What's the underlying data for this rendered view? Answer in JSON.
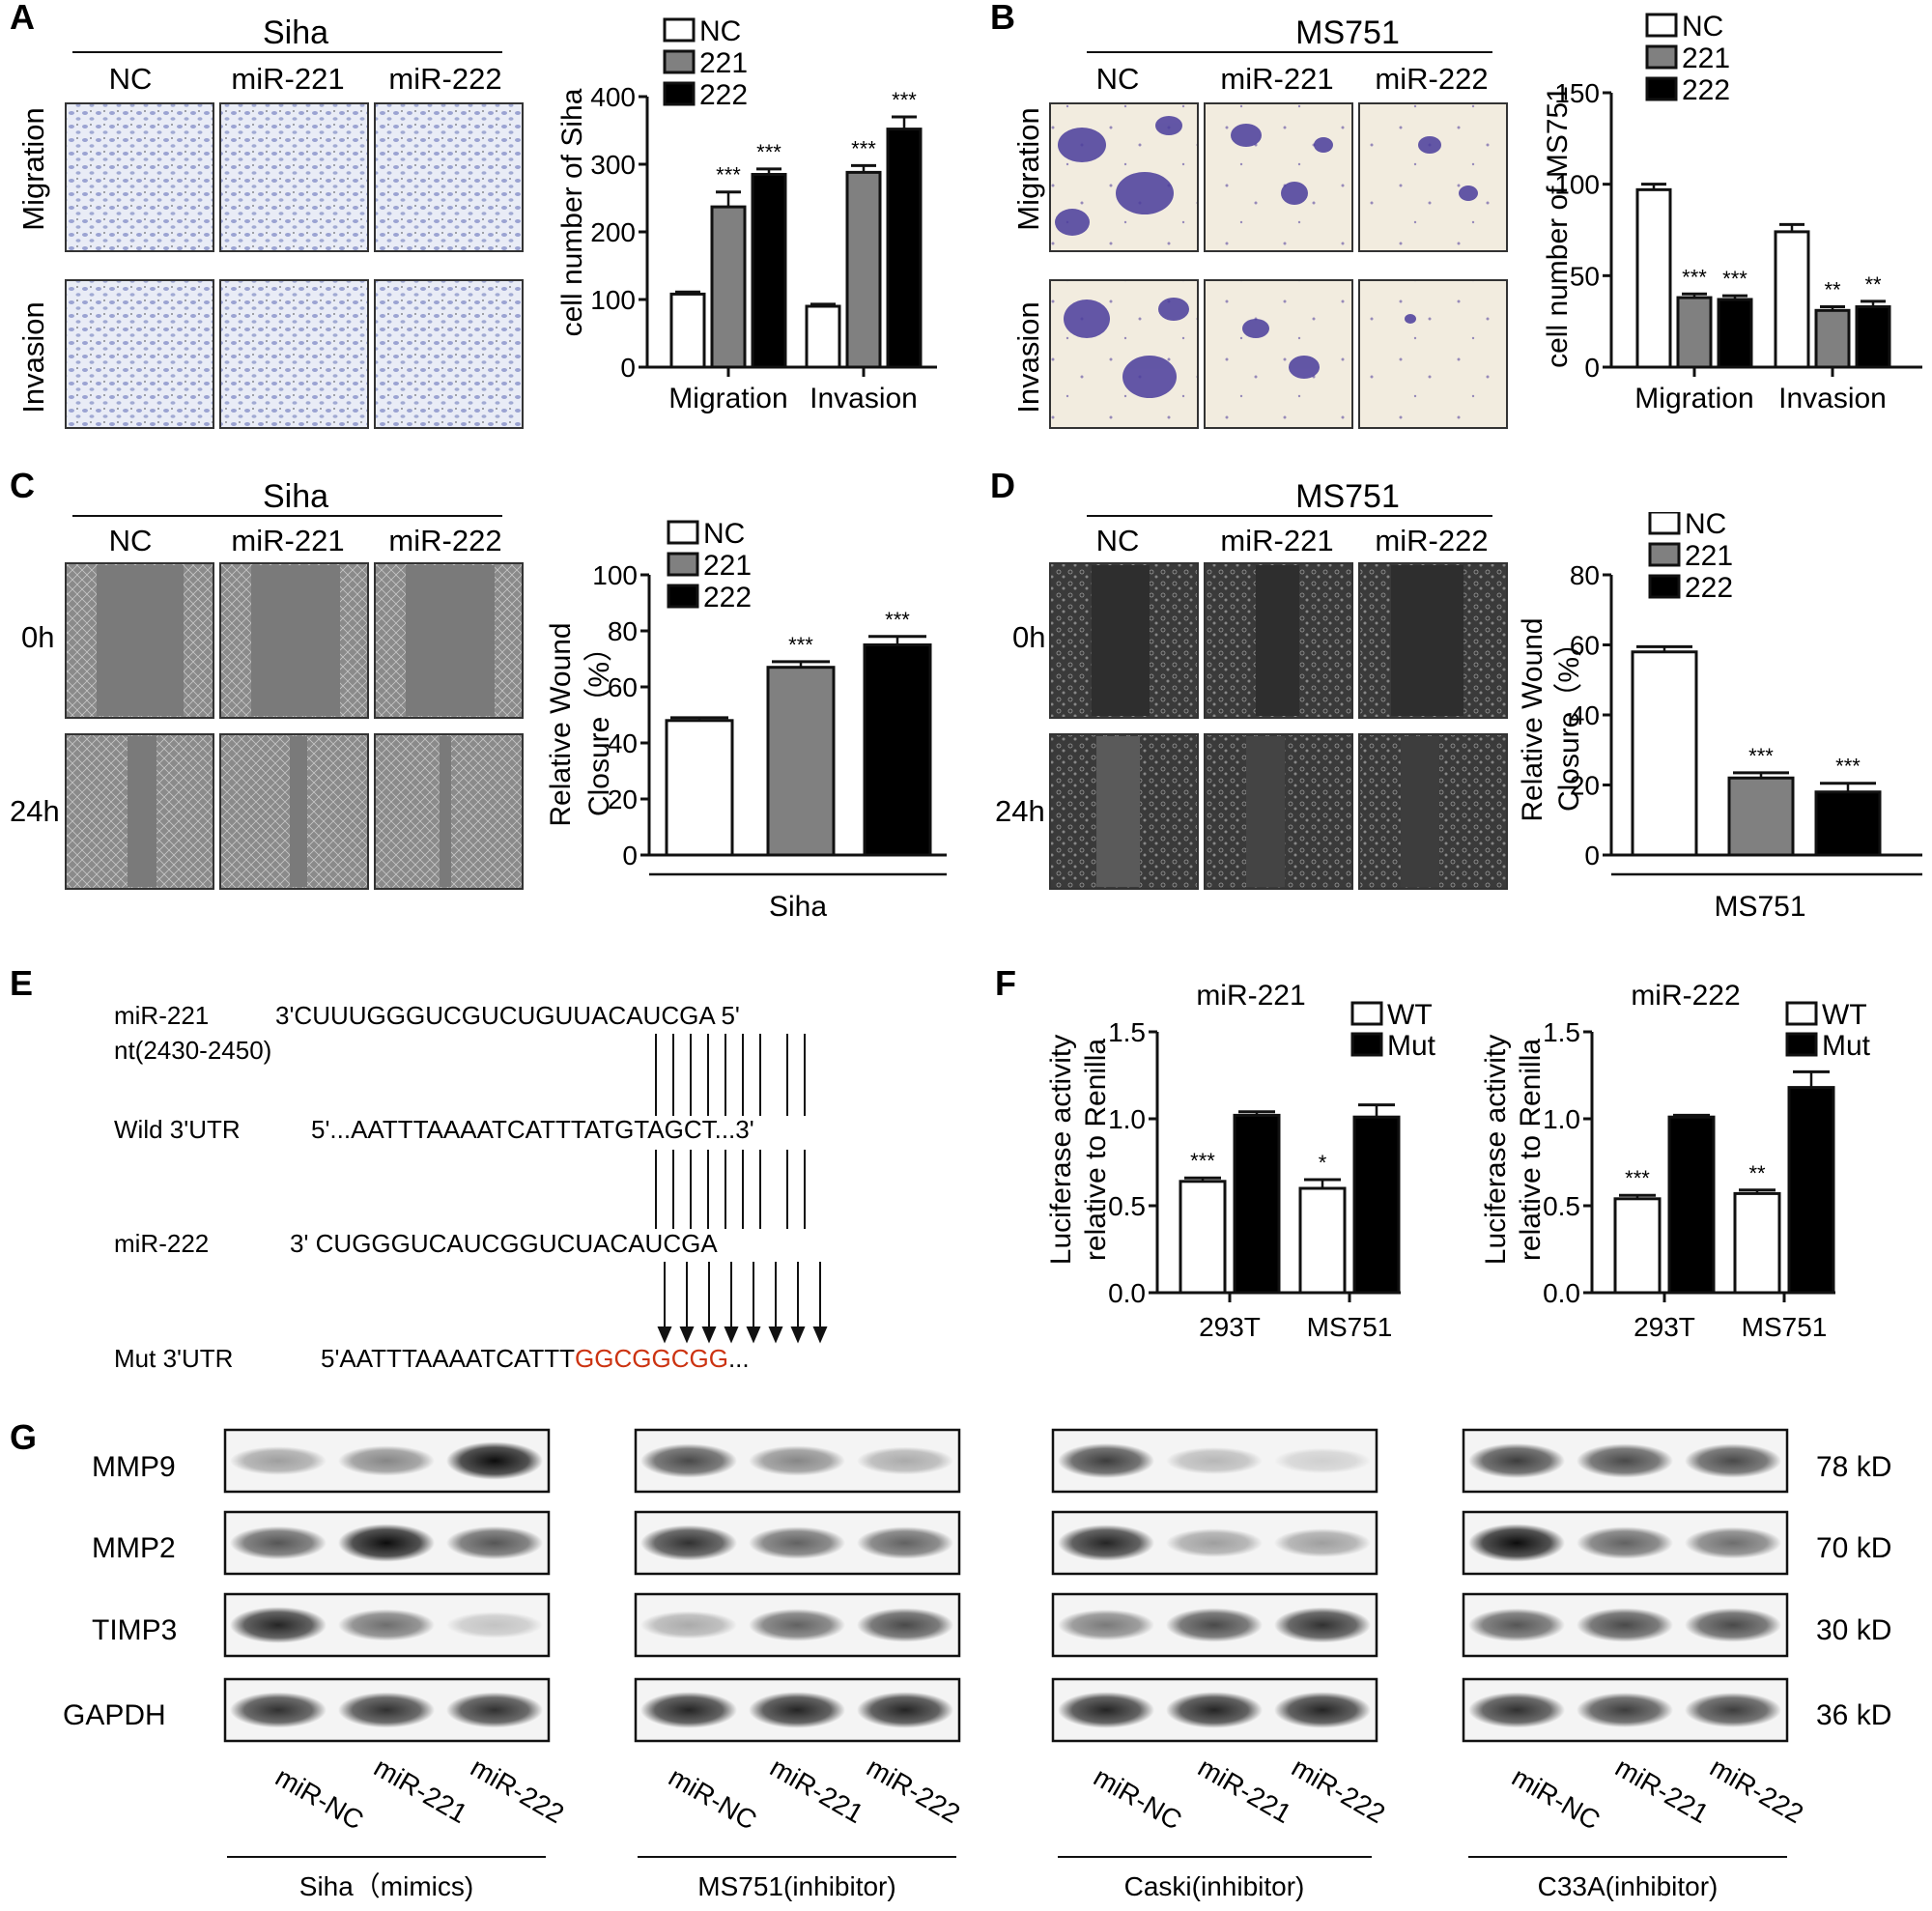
{
  "panels": {
    "A": {
      "letter": "A",
      "cell": "Siha",
      "cols": [
        "NC",
        "miR-221",
        "miR-222"
      ],
      "rows": [
        "Migration",
        "Invasion"
      ],
      "scale": "40μm",
      "chart": {
        "ylabel": "cell number of Siha",
        "legend": [
          "NC",
          "221",
          "222"
        ]
      }
    },
    "B": {
      "letter": "B",
      "cell": "MS751",
      "cols": [
        "NC",
        "miR-221",
        "miR-222"
      ],
      "rows": [
        "Migration",
        "Invasion"
      ],
      "scale": "40μm",
      "chart": {
        "ylabel": "cell number of MS751",
        "legend": [
          "NC",
          "221",
          "222"
        ]
      }
    },
    "C": {
      "letter": "C",
      "cell": "Siha",
      "cols": [
        "NC",
        "miR-221",
        "miR-222"
      ],
      "rows": [
        "0h",
        "24h"
      ],
      "scale": "100μm",
      "chart": {
        "ylabel1": "Relative Wound",
        "ylabel2": "Closure（%）",
        "xlabel": "Siha",
        "legend": [
          "NC",
          "221",
          "222"
        ]
      }
    },
    "D": {
      "letter": "D",
      "cell": "MS751",
      "cols": [
        "NC",
        "miR-221",
        "miR-222"
      ],
      "rows": [
        "0h",
        "24h"
      ],
      "scale": "100μm",
      "chart": {
        "ylabel1": "Relative Wound",
        "ylabel2": "Closure（%）",
        "xlabel": "MS751",
        "legend": [
          "NC",
          "221",
          "222"
        ]
      }
    },
    "E": {
      "letter": "E",
      "lines": [
        {
          "label": "miR-221",
          "seq": "3'CUUUGGGUCGUCUGUUACAUCGA 5'"
        },
        {
          "label": "nt(2430-2450)",
          "seq": ""
        },
        {
          "label": "Wild 3'UTR",
          "seq": "5'...AATTTAAAATCATTTATGTAGCT...3'"
        },
        {
          "label": "miR-222",
          "seq": "3' CUGGGUCAUCGGUCUACAUCGA"
        },
        {
          "label": "Mut 3'UTR",
          "seq": "5'AATTTAAAATCATTT",
          "seq_mut": "GGCGGCGG",
          "seq_tail": "..."
        }
      ]
    },
    "F": {
      "letter": "F",
      "ylabel1": "Luciferase activity",
      "ylabel2": "relative to Renilla",
      "legend": [
        "WT",
        "Mut"
      ],
      "titles": [
        "miR-221",
        "miR-222"
      ]
    },
    "G": {
      "letter": "G",
      "proteins": [
        "MMP9",
        "MMP2",
        "TIMP3",
        "GAPDH"
      ],
      "kd": [
        "78 kD",
        "70 kD",
        "30 kD",
        "36 kD"
      ],
      "lanes": [
        "miR-NC",
        "miR-221",
        "miR-222"
      ],
      "groups": [
        "Siha（mimics)",
        "MS751(inhibitor)",
        "Caski(inhibitor)",
        "C33A(inhibitor)"
      ]
    }
  },
  "chart_data": [
    {
      "id": "A",
      "type": "bar",
      "title": "",
      "categories": [
        "Migration",
        "Invasion"
      ],
      "series": [
        {
          "name": "NC",
          "values": [
            108,
            90
          ],
          "err": [
            3,
            3
          ]
        },
        {
          "name": "221",
          "values": [
            237,
            288
          ],
          "err": [
            22,
            10
          ]
        },
        {
          "name": "222",
          "values": [
            285,
            352
          ],
          "err": [
            8,
            18
          ]
        }
      ],
      "sig": [
        [
          "",
          "***",
          "***"
        ],
        [
          "",
          "***",
          "***"
        ]
      ],
      "ylim": [
        0,
        400
      ],
      "yticks": [
        0,
        100,
        200,
        300,
        400
      ]
    },
    {
      "id": "B",
      "type": "bar",
      "title": "",
      "categories": [
        "Migration",
        "Invasion"
      ],
      "series": [
        {
          "name": "NC",
          "values": [
            97,
            74
          ],
          "err": [
            3,
            4
          ]
        },
        {
          "name": "221",
          "values": [
            38,
            31
          ],
          "err": [
            2,
            2
          ]
        },
        {
          "name": "222",
          "values": [
            37,
            33
          ],
          "err": [
            2,
            3
          ]
        }
      ],
      "sig": [
        [
          "",
          "***",
          "***"
        ],
        [
          "",
          "**",
          "**"
        ]
      ],
      "ylim": [
        0,
        150
      ],
      "yticks": [
        0,
        50,
        100,
        150
      ]
    },
    {
      "id": "C",
      "type": "bar",
      "title": "",
      "categories": [
        "NC",
        "221",
        "222"
      ],
      "values": [
        48,
        67,
        75
      ],
      "err": [
        1,
        2,
        3
      ],
      "sig": [
        "",
        "***",
        "***"
      ],
      "ylim": [
        0,
        100
      ],
      "yticks": [
        0,
        20,
        40,
        60,
        80,
        100
      ]
    },
    {
      "id": "D",
      "type": "bar",
      "title": "",
      "categories": [
        "NC",
        "221",
        "222"
      ],
      "values": [
        58,
        22,
        18
      ],
      "err": [
        1.5,
        1.5,
        2.5
      ],
      "sig": [
        "",
        "***",
        "***"
      ],
      "ylim": [
        0,
        80
      ],
      "yticks": [
        0,
        20,
        40,
        60,
        80
      ]
    },
    {
      "id": "F1",
      "type": "bar",
      "title": "miR-221",
      "categories": [
        "293T",
        "MS751"
      ],
      "series": [
        {
          "name": "WT",
          "values": [
            0.64,
            0.6
          ],
          "err": [
            0.02,
            0.05
          ]
        },
        {
          "name": "Mut",
          "values": [
            1.02,
            1.01
          ],
          "err": [
            0.02,
            0.07
          ]
        }
      ],
      "sig": [
        [
          "***",
          ""
        ],
        [
          "*",
          ""
        ]
      ],
      "ylim": [
        0,
        1.5
      ],
      "yticks": [
        0.0,
        0.5,
        1.0,
        1.5
      ]
    },
    {
      "id": "F2",
      "type": "bar",
      "title": "miR-222",
      "categories": [
        "293T",
        "MS751"
      ],
      "series": [
        {
          "name": "WT",
          "values": [
            0.54,
            0.57
          ],
          "err": [
            0.02,
            0.02
          ]
        },
        {
          "name": "Mut",
          "values": [
            1.01,
            1.18
          ],
          "err": [
            0.01,
            0.09
          ]
        }
      ],
      "sig": [
        [
          "***",
          ""
        ],
        [
          "**",
          ""
        ]
      ],
      "ylim": [
        0,
        1.5
      ],
      "yticks": [
        0.0,
        0.5,
        1.0,
        1.5
      ]
    }
  ],
  "blot_intensity": {
    "Siha": [
      [
        0.35,
        0.45,
        0.95
      ],
      [
        0.65,
        0.95,
        0.65
      ],
      [
        0.85,
        0.55,
        0.2
      ],
      [
        0.8,
        0.8,
        0.8
      ]
    ],
    "MS751": [
      [
        0.7,
        0.45,
        0.3
      ],
      [
        0.8,
        0.6,
        0.6
      ],
      [
        0.3,
        0.6,
        0.7
      ],
      [
        0.85,
        0.85,
        0.85
      ]
    ],
    "Caski": [
      [
        0.75,
        0.25,
        0.15
      ],
      [
        0.85,
        0.35,
        0.35
      ],
      [
        0.5,
        0.7,
        0.8
      ],
      [
        0.85,
        0.85,
        0.85
      ]
    ],
    "C33A": [
      [
        0.75,
        0.7,
        0.7
      ],
      [
        0.95,
        0.6,
        0.55
      ],
      [
        0.65,
        0.7,
        0.7
      ],
      [
        0.8,
        0.75,
        0.75
      ]
    ]
  },
  "colors": {
    "nc": "#ffffff",
    "s221": "#808080",
    "s222": "#000000",
    "mut": "#cc3311",
    "transwell": "#ebeef7",
    "stain": "#4a5aa8",
    "wound": "#7d7d7d"
  }
}
